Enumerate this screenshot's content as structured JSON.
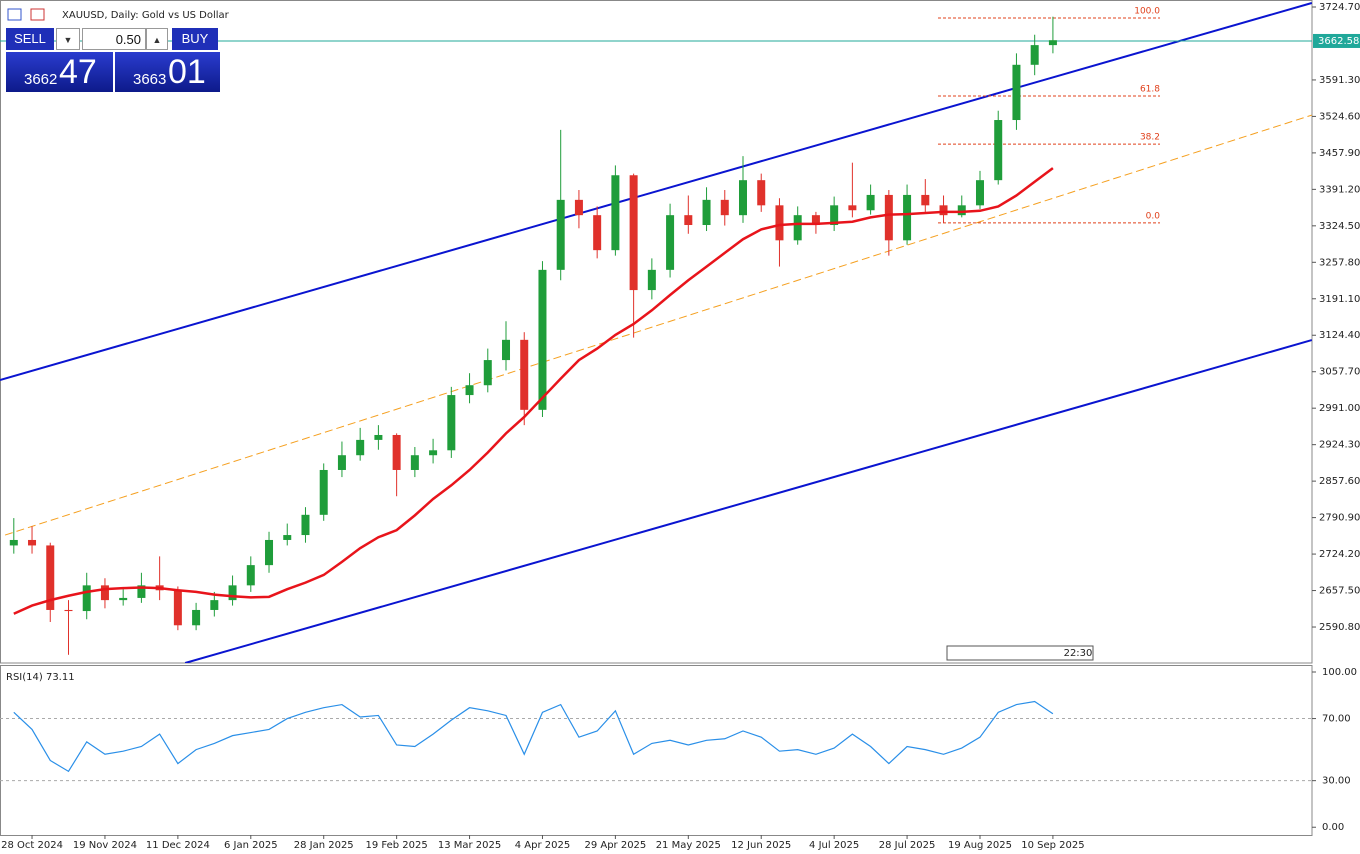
{
  "header": {
    "title": "XAUUSD, Daily:  Gold vs US Dollar"
  },
  "trade_panel": {
    "sell": "SELL",
    "lot": "0.50",
    "buy": "BUY",
    "sell_big": "3662",
    "sell_small": "47",
    "buy_big": "3663",
    "buy_small": "01"
  },
  "time_label": "22:30",
  "chart_data": [
    {
      "type": "candlestick",
      "up_color": "#1f9d3a",
      "down_color": "#e0312b",
      "ylim": [
        2525,
        3737.5
      ],
      "yticks": [
        {
          "value": 3724.7,
          "label": "3724.70"
        },
        {
          "value": 3591.3,
          "label": "3591.30"
        },
        {
          "value": 3524.6,
          "label": "3524.60"
        },
        {
          "value": 3457.9,
          "label": "3457.90"
        },
        {
          "value": 3391.2,
          "label": "3391.20"
        },
        {
          "value": 3324.5,
          "label": "3324.50"
        },
        {
          "value": 3257.8,
          "label": "3257.80"
        },
        {
          "value": 3191.1,
          "label": "3191.10"
        },
        {
          "value": 3124.4,
          "label": "3124.40"
        },
        {
          "value": 3057.7,
          "label": "3057.70"
        },
        {
          "value": 2991,
          "label": "2991.00"
        },
        {
          "value": 2924.3,
          "label": "2924.30"
        },
        {
          "value": 2857.6,
          "label": "2857.60"
        },
        {
          "value": 2790.9,
          "label": "2790.90"
        },
        {
          "value": 2724.2,
          "label": "2724.20"
        },
        {
          "value": 2657.5,
          "label": "2657.50"
        },
        {
          "value": 2590.8,
          "label": "2590.80"
        }
      ],
      "open": [
        2740,
        2750,
        2740,
        2622,
        2620,
        2667,
        2640,
        2644,
        2667,
        2658,
        2594,
        2622,
        2640,
        2667,
        2704,
        2750,
        2759,
        2796,
        2878,
        2905,
        2933,
        2942,
        2878,
        2905,
        2914,
        3015,
        3033,
        3079,
        3116,
        2988,
        3244,
        3372,
        3344,
        3280,
        3417,
        3207,
        3244,
        3344,
        3326,
        3372,
        3344,
        3408,
        3362,
        3298,
        3344,
        3326,
        3362,
        3353,
        3381,
        3298,
        3381,
        3362,
        3344,
        3362,
        3408,
        3518,
        3619,
        3655
      ],
      "high": [
        2790,
        2775,
        2745,
        2640,
        2690,
        2680,
        2660,
        2690,
        2720,
        2665,
        2635,
        2655,
        2685,
        2720,
        2765,
        2780,
        2810,
        2890,
        2930,
        2955,
        2960,
        2945,
        2920,
        2935,
        3030,
        3055,
        3100,
        3150,
        3130,
        3260,
        3500,
        3390,
        3360,
        3435,
        3420,
        3265,
        3365,
        3380,
        3395,
        3390,
        3452,
        3420,
        3375,
        3360,
        3350,
        3378,
        3440,
        3400,
        3390,
        3400,
        3410,
        3380,
        3380,
        3425,
        3535,
        3640,
        3674,
        3707
      ],
      "low": [
        2725,
        2725,
        2600,
        2540,
        2605,
        2625,
        2630,
        2635,
        2640,
        2585,
        2585,
        2610,
        2630,
        2655,
        2690,
        2740,
        2745,
        2785,
        2865,
        2895,
        2915,
        2830,
        2865,
        2890,
        2900,
        3000,
        3020,
        3060,
        2960,
        2975,
        3225,
        3320,
        3265,
        3270,
        3120,
        3190,
        3230,
        3310,
        3315,
        3325,
        3330,
        3350,
        3250,
        3290,
        3310,
        3315,
        3340,
        3345,
        3270,
        3290,
        3350,
        3330,
        3340,
        3355,
        3400,
        3500,
        3600,
        3640
      ],
      "close": [
        2750,
        2740,
        2622,
        2620,
        2667,
        2640,
        2644,
        2667,
        2658,
        2594,
        2622,
        2640,
        2667,
        2704,
        2750,
        2759,
        2796,
        2878,
        2905,
        2933,
        2942,
        2878,
        2905,
        2914,
        3015,
        3033,
        3079,
        3116,
        2988,
        3244,
        3372,
        3344,
        3280,
        3417,
        3207,
        3244,
        3344,
        3326,
        3372,
        3344,
        3408,
        3362,
        3298,
        3344,
        3326,
        3362,
        3353,
        3381,
        3298,
        3381,
        3362,
        3344,
        3362,
        3408,
        3518,
        3619,
        3655,
        3664
      ],
      "ma": {
        "color": "#e8141b",
        "values": [
          2615,
          2630,
          2640,
          2648,
          2655,
          2660,
          2662,
          2663,
          2662,
          2658,
          2655,
          2650,
          2647,
          2645,
          2646,
          2660,
          2672,
          2686,
          2710,
          2735,
          2755,
          2768,
          2795,
          2825,
          2850,
          2878,
          2910,
          2945,
          2975,
          3010,
          3045,
          3079,
          3100,
          3125,
          3145,
          3170,
          3198,
          3225,
          3250,
          3275,
          3300,
          3318,
          3326,
          3328,
          3328,
          3330,
          3332,
          3340,
          3345,
          3346,
          3348,
          3350,
          3350,
          3352,
          3360,
          3380,
          3405,
          3430
        ]
      },
      "trendlines": [
        {
          "color": "#0a14d0",
          "dashed": false,
          "start": [
            -0.76,
            3042.5
          ],
          "end": [
            71.2,
            3732
          ]
        },
        {
          "color": "#0a14d0",
          "dashed": false,
          "start": [
            9.4,
            2525
          ],
          "end": [
            71.2,
            3115.6
          ]
        },
        {
          "color": "#f5a020",
          "dashed": true,
          "start": [
            -0.48,
            2759
          ],
          "end": [
            71.2,
            3527
          ]
        }
      ],
      "fibonacci": {
        "color": "#e0401b",
        "levels": [
          {
            "value": 100,
            "label": "100.0"
          },
          {
            "value": 61.8,
            "label": "61.8"
          },
          {
            "value": 38.2,
            "label": "38.2"
          },
          {
            "value": 0,
            "label": "0.0"
          }
        ],
        "prices": [
          3704.6,
          3562,
          3474,
          3330
        ]
      },
      "last_price": 3662.58,
      "last_price_color": "#20a89a"
    },
    {
      "type": "line",
      "title": "RSI(14) 73.11",
      "categories": [
        null,
        "28 Oct 2024",
        null,
        null,
        null,
        "19 Nov 2024",
        null,
        null,
        null,
        "11 Dec 2024",
        null,
        null,
        null,
        "6 Jan 2025",
        null,
        null,
        null,
        "28 Jan 2025",
        null,
        null,
        null,
        "19 Feb 2025",
        null,
        null,
        null,
        "13 Mar 2025",
        null,
        null,
        null,
        "4 Apr 2025",
        null,
        null,
        null,
        "29 Apr 2025",
        null,
        null,
        null,
        "21 May 2025",
        null,
        null,
        null,
        "12 Jun 2025",
        null,
        null,
        null,
        "4 Jul 2025",
        null,
        null,
        null,
        "28 Jul 2025",
        null,
        null,
        null,
        "19 Aug 2025",
        null,
        null,
        null,
        "10 Sep 2025"
      ],
      "ylim": [
        -5,
        104.5
      ],
      "yticks": [
        {
          "value": 100,
          "label": "100.00"
        },
        {
          "value": 70,
          "label": "70.00"
        },
        {
          "value": 30,
          "label": "30.00"
        },
        {
          "value": 0,
          "label": "0.00"
        }
      ],
      "series": [
        {
          "color": "#2a8fe8",
          "values": [
            74,
            63,
            43,
            36,
            55,
            47,
            49,
            52,
            60,
            41,
            50,
            54,
            59,
            61,
            63,
            70,
            74,
            77,
            79,
            71,
            72,
            53,
            52,
            60,
            69,
            77,
            75,
            72,
            47,
            74,
            79,
            58,
            62,
            75,
            47,
            54,
            56,
            53,
            56,
            57,
            62,
            58,
            49,
            50,
            47,
            51,
            60,
            52,
            41,
            52,
            50,
            47,
            51,
            58,
            74,
            79,
            81,
            73.11
          ]
        }
      ]
    }
  ]
}
